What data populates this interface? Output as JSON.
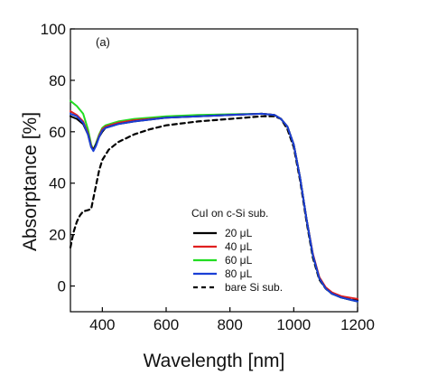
{
  "chart_data": {
    "type": "line",
    "panel_label": "(a)",
    "xlabel": "Wavelength [nm]",
    "ylabel": "Absorptance [%]",
    "xlim": [
      300,
      1200
    ],
    "ylim": [
      -10,
      100
    ],
    "xticks": [
      400,
      600,
      800,
      1000,
      1200
    ],
    "yticks": [
      0,
      20,
      40,
      60,
      80,
      100
    ],
    "legend": {
      "title": "CuI on c-Si sub.",
      "placement": "lower-center"
    },
    "series": [
      {
        "name": "20 μL",
        "color": "#000000",
        "dash": "solid",
        "points": [
          [
            300,
            66
          ],
          [
            320,
            65
          ],
          [
            340,
            63
          ],
          [
            355,
            59
          ],
          [
            365,
            54
          ],
          [
            372,
            53
          ],
          [
            380,
            55
          ],
          [
            390,
            58
          ],
          [
            400,
            60
          ],
          [
            410,
            61.5
          ],
          [
            450,
            63
          ],
          [
            500,
            64
          ],
          [
            600,
            65.5
          ],
          [
            700,
            66
          ],
          [
            800,
            66.5
          ],
          [
            900,
            67
          ],
          [
            940,
            66.5
          ],
          [
            960,
            65
          ],
          [
            980,
            62
          ],
          [
            1000,
            55
          ],
          [
            1020,
            42
          ],
          [
            1040,
            26
          ],
          [
            1060,
            12
          ],
          [
            1080,
            3
          ],
          [
            1100,
            -1
          ],
          [
            1120,
            -3
          ],
          [
            1150,
            -4.5
          ],
          [
            1200,
            -6
          ]
        ]
      },
      {
        "name": "40 μL",
        "color": "#e02020",
        "dash": "solid",
        "points": [
          [
            300,
            68
          ],
          [
            320,
            66.5
          ],
          [
            340,
            64
          ],
          [
            355,
            59.5
          ],
          [
            365,
            54.5
          ],
          [
            372,
            53
          ],
          [
            380,
            55
          ],
          [
            390,
            58.5
          ],
          [
            400,
            61
          ],
          [
            410,
            62
          ],
          [
            450,
            63.5
          ],
          [
            500,
            64.5
          ],
          [
            600,
            65.5
          ],
          [
            700,
            66
          ],
          [
            800,
            66.5
          ],
          [
            900,
            67
          ],
          [
            940,
            66.5
          ],
          [
            960,
            65
          ],
          [
            980,
            62
          ],
          [
            1000,
            55
          ],
          [
            1020,
            42
          ],
          [
            1040,
            26
          ],
          [
            1060,
            12.5
          ],
          [
            1080,
            3.5
          ],
          [
            1100,
            -0.5
          ],
          [
            1120,
            -2.5
          ],
          [
            1150,
            -4
          ],
          [
            1200,
            -5
          ]
        ]
      },
      {
        "name": "60 μL",
        "color": "#22dd22",
        "dash": "solid",
        "points": [
          [
            300,
            72
          ],
          [
            320,
            70
          ],
          [
            340,
            67
          ],
          [
            355,
            61
          ],
          [
            365,
            55
          ],
          [
            372,
            53
          ],
          [
            380,
            55.5
          ],
          [
            390,
            59
          ],
          [
            400,
            61.5
          ],
          [
            410,
            62.5
          ],
          [
            450,
            64
          ],
          [
            500,
            65
          ],
          [
            600,
            66
          ],
          [
            700,
            66.5
          ],
          [
            800,
            66.8
          ],
          [
            900,
            67
          ],
          [
            940,
            66.5
          ],
          [
            960,
            65
          ],
          [
            980,
            62
          ],
          [
            1000,
            55
          ],
          [
            1020,
            42
          ],
          [
            1040,
            26
          ],
          [
            1060,
            12
          ],
          [
            1080,
            3
          ],
          [
            1100,
            -1
          ],
          [
            1120,
            -3
          ],
          [
            1150,
            -4.5
          ],
          [
            1200,
            -6
          ]
        ]
      },
      {
        "name": "80 μL",
        "color": "#1a3fd6",
        "dash": "solid",
        "points": [
          [
            300,
            67
          ],
          [
            320,
            66
          ],
          [
            340,
            63.5
          ],
          [
            355,
            59
          ],
          [
            365,
            54
          ],
          [
            372,
            52.5
          ],
          [
            380,
            54.5
          ],
          [
            390,
            58
          ],
          [
            400,
            60.5
          ],
          [
            410,
            61.5
          ],
          [
            450,
            63
          ],
          [
            500,
            64
          ],
          [
            600,
            65.5
          ],
          [
            700,
            66
          ],
          [
            800,
            66.5
          ],
          [
            900,
            67
          ],
          [
            940,
            66.5
          ],
          [
            960,
            65
          ],
          [
            980,
            62
          ],
          [
            1000,
            55
          ],
          [
            1020,
            42
          ],
          [
            1040,
            26
          ],
          [
            1060,
            12
          ],
          [
            1080,
            3
          ],
          [
            1100,
            -1
          ],
          [
            1120,
            -3
          ],
          [
            1150,
            -4.5
          ],
          [
            1200,
            -6
          ]
        ]
      },
      {
        "name": "bare Si sub.",
        "color": "#000000",
        "dash": "dashed",
        "points": [
          [
            300,
            15
          ],
          [
            310,
            21
          ],
          [
            320,
            25
          ],
          [
            330,
            27.5
          ],
          [
            340,
            29
          ],
          [
            355,
            29.5
          ],
          [
            365,
            30
          ],
          [
            375,
            36
          ],
          [
            390,
            45
          ],
          [
            400,
            49
          ],
          [
            420,
            53
          ],
          [
            450,
            56
          ],
          [
            500,
            59
          ],
          [
            550,
            61
          ],
          [
            600,
            62.5
          ],
          [
            700,
            64
          ],
          [
            800,
            65
          ],
          [
            900,
            66
          ],
          [
            940,
            66
          ],
          [
            960,
            65
          ],
          [
            980,
            61
          ],
          [
            1000,
            54
          ],
          [
            1020,
            41
          ],
          [
            1040,
            25
          ],
          [
            1060,
            11
          ],
          [
            1080,
            2.5
          ],
          [
            1100,
            -1
          ],
          [
            1120,
            -3
          ],
          [
            1150,
            -4.5
          ],
          [
            1200,
            -5.5
          ]
        ]
      }
    ]
  }
}
